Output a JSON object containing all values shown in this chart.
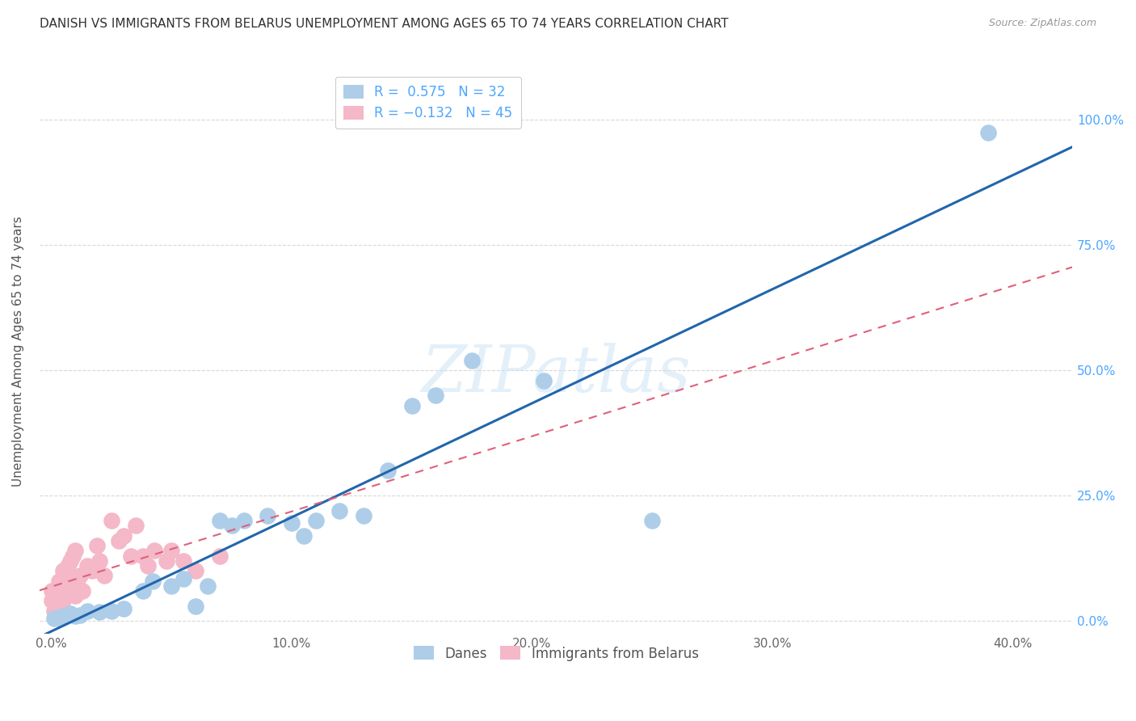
{
  "title": "DANISH VS IMMIGRANTS FROM BELARUS UNEMPLOYMENT AMONG AGES 65 TO 74 YEARS CORRELATION CHART",
  "source": "Source: ZipAtlas.com",
  "xlabel_ticks": [
    "0.0%",
    "10.0%",
    "20.0%",
    "30.0%",
    "40.0%"
  ],
  "xlabel_vals": [
    0.0,
    0.1,
    0.2,
    0.3,
    0.4
  ],
  "ylabel": "Unemployment Among Ages 65 to 74 years",
  "ylabel_right_ticks": [
    "0.0%",
    "25.0%",
    "50.0%",
    "75.0%",
    "100.0%"
  ],
  "ylabel_vals": [
    0.0,
    0.25,
    0.5,
    0.75,
    1.0
  ],
  "xlim": [
    -0.005,
    0.425
  ],
  "ylim": [
    -0.025,
    1.1
  ],
  "danes_R": 0.575,
  "danes_N": 32,
  "belarus_R": -0.132,
  "belarus_N": 45,
  "danes_color": "#aecde8",
  "danes_line_color": "#2166ac",
  "belarus_color": "#f4b8c8",
  "belarus_line_color": "#e0607a",
  "legend_blue_color": "#aecde8",
  "legend_pink_color": "#f4b8c8",
  "danes_x": [
    0.001,
    0.003,
    0.005,
    0.008,
    0.01,
    0.012,
    0.015,
    0.02,
    0.025,
    0.03,
    0.038,
    0.042,
    0.05,
    0.055,
    0.06,
    0.065,
    0.07,
    0.075,
    0.08,
    0.09,
    0.1,
    0.105,
    0.11,
    0.12,
    0.13,
    0.14,
    0.15,
    0.16,
    0.175,
    0.205,
    0.25,
    0.39
  ],
  "danes_y": [
    0.005,
    0.005,
    0.01,
    0.015,
    0.01,
    0.012,
    0.02,
    0.018,
    0.02,
    0.025,
    0.06,
    0.08,
    0.07,
    0.085,
    0.03,
    0.07,
    0.2,
    0.19,
    0.2,
    0.21,
    0.195,
    0.17,
    0.2,
    0.22,
    0.21,
    0.3,
    0.43,
    0.45,
    0.52,
    0.48,
    0.2,
    0.975
  ],
  "belarus_x": [
    0.0,
    0.0,
    0.001,
    0.001,
    0.002,
    0.002,
    0.003,
    0.003,
    0.003,
    0.004,
    0.004,
    0.005,
    0.005,
    0.005,
    0.006,
    0.006,
    0.007,
    0.007,
    0.008,
    0.008,
    0.009,
    0.009,
    0.01,
    0.01,
    0.011,
    0.012,
    0.013,
    0.015,
    0.017,
    0.019,
    0.02,
    0.022,
    0.025,
    0.028,
    0.03,
    0.033,
    0.035,
    0.038,
    0.04,
    0.043,
    0.048,
    0.05,
    0.055,
    0.06,
    0.07
  ],
  "belarus_y": [
    0.04,
    0.06,
    0.02,
    0.05,
    0.03,
    0.065,
    0.025,
    0.05,
    0.08,
    0.035,
    0.07,
    0.04,
    0.08,
    0.1,
    0.06,
    0.09,
    0.055,
    0.11,
    0.07,
    0.12,
    0.085,
    0.13,
    0.05,
    0.14,
    0.07,
    0.09,
    0.06,
    0.11,
    0.1,
    0.15,
    0.12,
    0.09,
    0.2,
    0.16,
    0.17,
    0.13,
    0.19,
    0.13,
    0.11,
    0.14,
    0.12,
    0.14,
    0.12,
    0.1,
    0.13
  ],
  "watermark_text": "ZIPatlas",
  "background_color": "#ffffff",
  "grid_color": "#d8d8d8"
}
